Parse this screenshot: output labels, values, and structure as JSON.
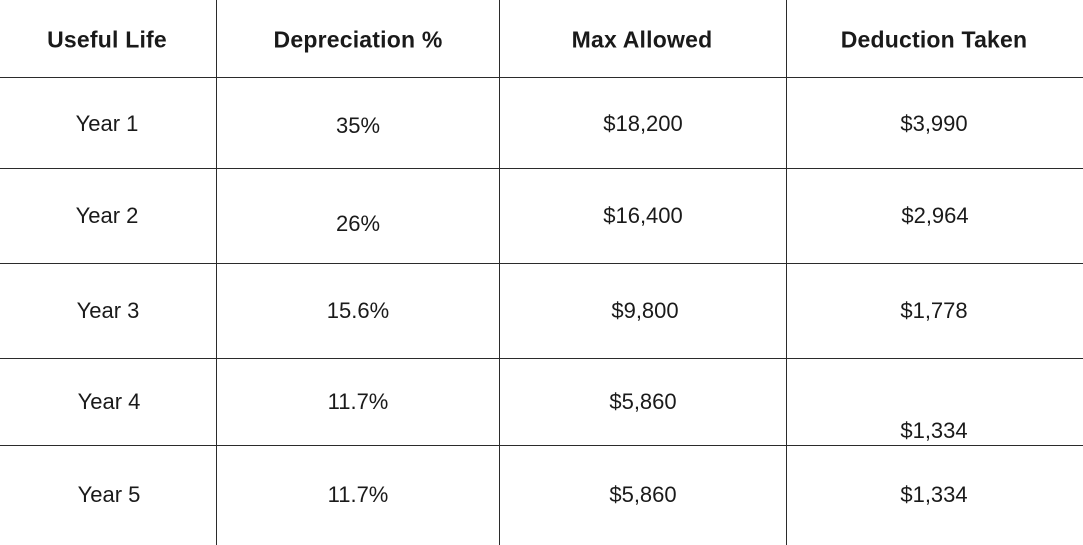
{
  "headers": [
    "Useful Life",
    "Depreciation %",
    "Max Allowed",
    "Deduction Taken"
  ],
  "rows": [
    {
      "life": "Year 1",
      "pct": "35%",
      "max": "$18,200",
      "taken": "$3,990"
    },
    {
      "life": "Year 2",
      "pct": "26%",
      "max": "$16,400",
      "taken": "$2,964"
    },
    {
      "life": "Year 3",
      "pct": "15.6%",
      "max": "$9,800",
      "taken": "$1,778"
    },
    {
      "life": "Year 4",
      "pct": "11.7%",
      "max": "$5,860",
      "taken": "$1,334"
    },
    {
      "life": "Year 5",
      "pct": "11.7%",
      "max": "$5,860",
      "taken": "$1,334"
    }
  ]
}
